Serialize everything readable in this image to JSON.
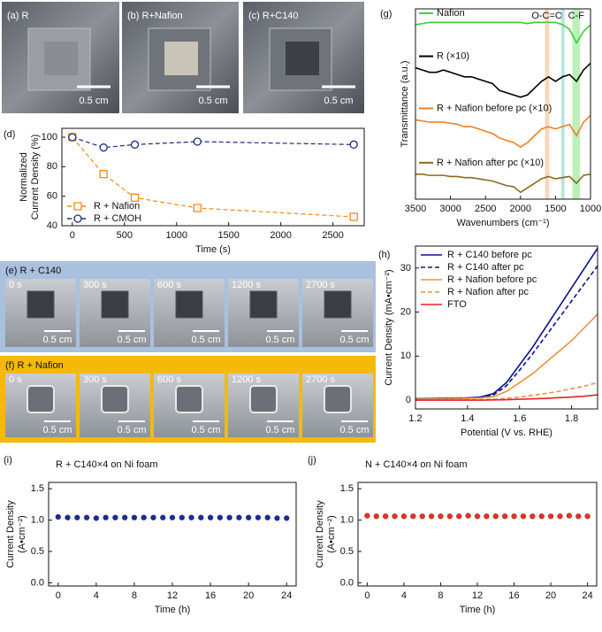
{
  "photos": {
    "top": [
      {
        "label": "(a) R",
        "scale": "0.5 cm"
      },
      {
        "label": "(b) R+Nafion",
        "scale": "0.5 cm"
      },
      {
        "label": "(c) R+C140",
        "scale": "0.5 cm"
      }
    ],
    "strips": [
      {
        "label": "(e) R + C140",
        "color": "#a9c0de",
        "frames": [
          {
            "time": "0 s",
            "scale": "0.5 cm"
          },
          {
            "time": "300 s",
            "scale": "0.5 cm"
          },
          {
            "time": "600 s",
            "scale": "0.5 cm"
          },
          {
            "time": "1200 s",
            "scale": "0.5 cm"
          },
          {
            "time": "2700 s",
            "scale": "0.5 cm"
          }
        ]
      },
      {
        "label": "(f) R + Nafion",
        "color": "#f5b90a",
        "frames": [
          {
            "time": "0 s",
            "scale": "0.5 cm"
          },
          {
            "time": "300 s",
            "scale": "0.5 cm"
          },
          {
            "time": "600 s",
            "scale": "0.5 cm"
          },
          {
            "time": "1200 s",
            "scale": "0.5 cm"
          },
          {
            "time": "2700 s",
            "scale": "0.5 cm"
          }
        ]
      }
    ]
  },
  "chart_data": [
    {
      "type": "line",
      "panel_label": "(d)",
      "xlabel": "Time (s)",
      "ylabel": [
        "Normalized",
        "Current Density (%)"
      ],
      "x": [
        0,
        300,
        600,
        1200,
        2700
      ],
      "series": [
        {
          "name": "R + Nafion",
          "color": "#f08c1e",
          "dash": true,
          "marker": "square-open",
          "values": [
            100,
            75,
            59,
            52,
            46
          ]
        },
        {
          "name": "R + CMOH",
          "color": "#1f2a80",
          "dash": true,
          "marker": "circle-open",
          "values": [
            100,
            93,
            95,
            97,
            95
          ]
        }
      ],
      "xlim": [
        -100,
        2800
      ],
      "xticks": [
        0,
        500,
        1000,
        1500,
        2000,
        2500
      ],
      "ylim": [
        40,
        106
      ],
      "yticks": [
        40,
        60,
        80,
        100
      ],
      "legend": "lower left"
    },
    {
      "type": "line",
      "panel_label": "(g)",
      "xlabel": "Wavenumbers (cm⁻¹)",
      "ylabel": [
        "Transmittance (a.u.)"
      ],
      "x": [
        3500,
        3400,
        3300,
        3200,
        3100,
        3000,
        2900,
        2800,
        2700,
        2600,
        2500,
        2400,
        2300,
        2200,
        2100,
        2000,
        1900,
        1800,
        1700,
        1600,
        1500,
        1400,
        1300,
        1200,
        1100,
        1000
      ],
      "series": [
        {
          "name": "Nafion",
          "color": "#3ccc3c",
          "values": [
            9.5,
            9.55,
            9.6,
            9.6,
            9.6,
            9.6,
            9.6,
            9.6,
            9.6,
            9.6,
            9.6,
            9.6,
            9.6,
            9.6,
            9.6,
            9.6,
            9.55,
            9.6,
            9.6,
            9.6,
            9.6,
            9.5,
            9.3,
            8.7,
            9.2,
            9.5
          ]
        },
        {
          "name": "R (×10)",
          "color": "#000000",
          "values": [
            7.6,
            7.5,
            7.4,
            7.4,
            7.5,
            7.4,
            7.3,
            7.2,
            7.2,
            7.1,
            7.0,
            6.9,
            6.6,
            6.5,
            6.4,
            6.3,
            6.4,
            6.7,
            7.0,
            7.2,
            7.0,
            7.2,
            7.3,
            7.0,
            7.5,
            7.8
          ]
        },
        {
          "name": "R + Nafion before pc (×10)",
          "color": "#f07f26",
          "values": [
            5.3,
            5.25,
            5.2,
            5.2,
            5.2,
            5.15,
            5.1,
            5.0,
            5.0,
            4.9,
            4.8,
            4.7,
            4.5,
            4.4,
            4.3,
            4.1,
            4.3,
            4.6,
            4.9,
            5.0,
            4.9,
            5.0,
            5.1,
            4.6,
            5.2,
            5.5
          ]
        },
        {
          "name": "R + Nafion after pc (×10)",
          "color": "#8b6a1f",
          "values": [
            2.9,
            2.9,
            2.85,
            2.85,
            2.85,
            2.8,
            2.8,
            2.75,
            2.75,
            2.7,
            2.65,
            2.6,
            2.5,
            2.4,
            2.35,
            2.1,
            2.3,
            2.5,
            2.7,
            2.8,
            2.7,
            2.75,
            2.8,
            2.5,
            2.85,
            2.9
          ]
        }
      ],
      "bands": [
        {
          "range": [
            1650,
            1590
          ],
          "color": "#f8c9a2",
          "label": "O-C=O"
        },
        {
          "range": [
            1420,
            1370
          ],
          "color": "#9fdcd6"
        },
        {
          "range": [
            1260,
            1150
          ],
          "color": "#a6eba0",
          "label": "C-F"
        }
      ],
      "xlim": [
        3500,
        1000
      ],
      "xticks": [
        3500,
        3000,
        2500,
        2000,
        1500,
        1000
      ],
      "ylim": [
        1.8,
        10.2
      ],
      "legend": "inline"
    },
    {
      "type": "line",
      "panel_label": "(h)",
      "xlabel": "Potential (V vs. RHE)",
      "ylabel": [
        "Current Density (mA•cm⁻²)"
      ],
      "x": [
        1.2,
        1.3,
        1.4,
        1.45,
        1.5,
        1.55,
        1.6,
        1.65,
        1.7,
        1.75,
        1.8,
        1.85,
        1.9
      ],
      "series": [
        {
          "name": "R + C140 before pc",
          "color": "#0a1290",
          "values": [
            0.3,
            0.4,
            0.5,
            0.7,
            1.5,
            4,
            8,
            12,
            16.5,
            21,
            25.5,
            30,
            34.5
          ]
        },
        {
          "name": "R + C140 after pc",
          "color": "#0a1290",
          "dash": true,
          "values": [
            0.3,
            0.4,
            0.5,
            0.6,
            1.2,
            3.3,
            6.8,
            10.5,
            14.5,
            18.5,
            22.5,
            26.5,
            30.5
          ]
        },
        {
          "name": "R + Nafion before pc",
          "color": "#f09040",
          "values": [
            0.2,
            0.3,
            0.4,
            0.5,
            0.8,
            2,
            4,
            6,
            8.5,
            11,
            13.5,
            16.5,
            19.5
          ]
        },
        {
          "name": "R + Nafion after pc",
          "color": "#f09040",
          "dash": true,
          "values": [
            0.1,
            0.1,
            0.1,
            0.1,
            0.2,
            0.4,
            0.7,
            1.1,
            1.5,
            2,
            2.6,
            3.2,
            4
          ]
        },
        {
          "name": "FTO",
          "color": "#e8202a",
          "values": [
            0,
            0,
            0,
            0,
            0.05,
            0.1,
            0.2,
            0.3,
            0.4,
            0.55,
            0.7,
            0.9,
            1.2
          ]
        }
      ],
      "xlim": [
        1.2,
        1.9
      ],
      "xticks": [
        1.2,
        1.4,
        1.6,
        1.8
      ],
      "ylim": [
        -2,
        35
      ],
      "yticks": [
        0,
        10,
        20,
        30
      ],
      "legend": "upper left"
    },
    {
      "type": "line",
      "panel_label": "(i)",
      "annotation": "R + C140×4 on Ni foam",
      "xlabel": "Time (h)",
      "ylabel": [
        "Current Density",
        "(A•cm⁻²)"
      ],
      "x": [
        0,
        1,
        2,
        3,
        4,
        5,
        6,
        7,
        8,
        9,
        10,
        11,
        12,
        13,
        14,
        15,
        16,
        17,
        18,
        19,
        20,
        21,
        22,
        23,
        24
      ],
      "series": [
        {
          "name": null,
          "color": "#1a2aa0",
          "marker": "circle",
          "values": [
            1.05,
            1.04,
            1.04,
            1.04,
            1.03,
            1.04,
            1.04,
            1.04,
            1.04,
            1.04,
            1.04,
            1.04,
            1.04,
            1.04,
            1.04,
            1.04,
            1.04,
            1.04,
            1.04,
            1.04,
            1.04,
            1.04,
            1.04,
            1.03,
            1.03
          ]
        }
      ],
      "xlim": [
        -1,
        25
      ],
      "xticks": [
        0,
        4,
        8,
        12,
        16,
        20,
        24
      ],
      "ylim": [
        -0.05,
        1.6
      ],
      "yticks": [
        {
          "value": 0,
          "label": "0.0"
        },
        0.5,
        {
          "value": 1,
          "label": "1.0"
        },
        1.5
      ]
    },
    {
      "type": "line",
      "panel_label": "(j)",
      "annotation": "N + C140×4 on Ni foam",
      "xlabel": "Time (h)",
      "ylabel": [
        "Current Density",
        "(A•cm⁻²)"
      ],
      "x": [
        0,
        1,
        2,
        3,
        4,
        5,
        6,
        7,
        8,
        9,
        10,
        11,
        12,
        13,
        14,
        15,
        16,
        17,
        18,
        19,
        20,
        21,
        22,
        23,
        24
      ],
      "series": [
        {
          "name": null,
          "color": "#e83020",
          "marker": "circle",
          "values": [
            1.07,
            1.06,
            1.06,
            1.06,
            1.06,
            1.06,
            1.06,
            1.06,
            1.06,
            1.06,
            1.06,
            1.07,
            1.06,
            1.06,
            1.06,
            1.06,
            1.06,
            1.06,
            1.06,
            1.06,
            1.06,
            1.06,
            1.07,
            1.06,
            1.06
          ]
        }
      ],
      "xlim": [
        -1,
        25
      ],
      "xticks": [
        0,
        4,
        8,
        12,
        16,
        20,
        24
      ],
      "ylim": [
        -0.05,
        1.6
      ],
      "yticks": [
        {
          "value": 0,
          "label": "0.0"
        },
        0.5,
        {
          "value": 1,
          "label": "1.0"
        },
        1.5
      ]
    }
  ]
}
